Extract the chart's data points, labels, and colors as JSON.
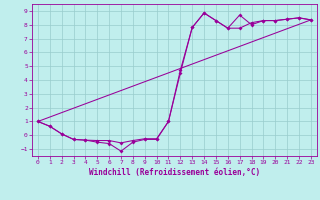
{
  "xlabel": "Windchill (Refroidissement éolien,°C)",
  "background_color": "#c0eeed",
  "line_color": "#990099",
  "grid_color": "#99cccc",
  "xlim": [
    -0.5,
    23.5
  ],
  "ylim": [
    -1.5,
    9.5
  ],
  "xticks": [
    0,
    1,
    2,
    3,
    4,
    5,
    6,
    7,
    8,
    9,
    10,
    11,
    12,
    13,
    14,
    15,
    16,
    17,
    18,
    19,
    20,
    21,
    22,
    23
  ],
  "yticks": [
    -1,
    0,
    1,
    2,
    3,
    4,
    5,
    6,
    7,
    8,
    9
  ],
  "curve1_x": [
    0,
    1,
    2,
    3,
    4,
    5,
    6,
    7,
    8,
    9,
    10,
    11,
    12,
    13,
    14,
    15,
    16,
    17,
    18,
    19,
    20,
    21,
    22,
    23
  ],
  "curve1_y": [
    1.0,
    0.65,
    0.1,
    -0.3,
    -0.35,
    -0.38,
    -0.38,
    -0.55,
    -0.38,
    -0.25,
    -0.25,
    1.0,
    4.7,
    7.8,
    8.85,
    8.3,
    7.75,
    7.75,
    8.15,
    8.3,
    8.3,
    8.4,
    8.5,
    8.35
  ],
  "curve2_x": [
    0,
    1,
    2,
    3,
    4,
    5,
    6,
    7,
    8,
    9,
    10,
    11,
    12,
    13,
    14,
    15,
    16,
    17,
    18,
    19,
    20,
    21,
    22,
    23
  ],
  "curve2_y": [
    1.0,
    0.65,
    0.1,
    -0.3,
    -0.35,
    -0.5,
    -0.6,
    -1.15,
    -0.5,
    -0.3,
    -0.3,
    1.0,
    4.5,
    7.8,
    8.85,
    8.3,
    7.75,
    8.7,
    8.0,
    8.3,
    8.3,
    8.4,
    8.5,
    8.35
  ],
  "line1_x": [
    0,
    23
  ],
  "line1_y": [
    1.0,
    8.35
  ]
}
